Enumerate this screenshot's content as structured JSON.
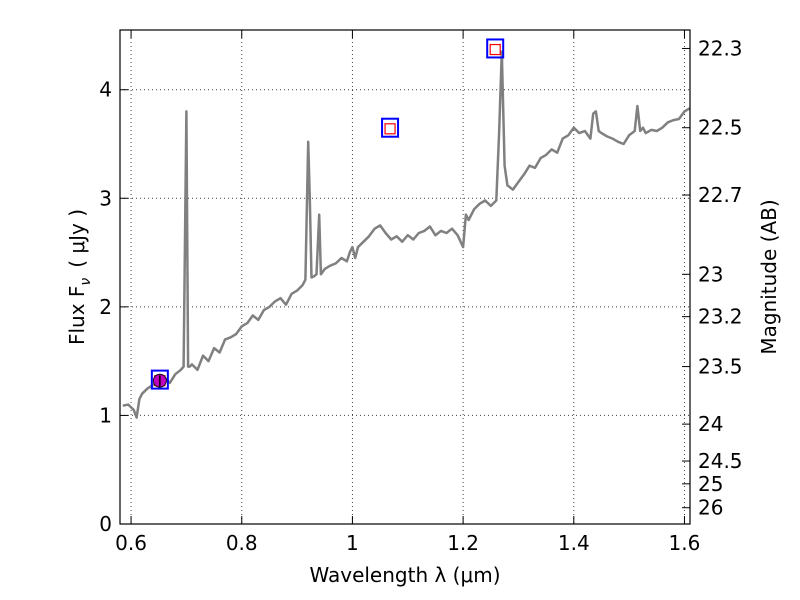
{
  "chart_data": {
    "type": "line",
    "xlabel": "Wavelength  λ (μm)",
    "ylabel": "Flux  F",
    "ylabel_sub": "ν",
    "ylabel_unit": "( μJy )",
    "ylabel_right": "Magnitude (AB)",
    "xlim": [
      0.58,
      1.61
    ],
    "ylim": [
      0,
      4.55
    ],
    "grid": true,
    "x_ticks": [
      0.6,
      0.8,
      1.0,
      1.2,
      1.4,
      1.6
    ],
    "x_tick_labels": [
      "0.6",
      "0.8",
      "1",
      "1.2",
      "1.4",
      "1.6"
    ],
    "y_ticks": [
      0,
      1,
      2,
      3,
      4
    ],
    "y_tick_labels": [
      "0",
      "1",
      "2",
      "3",
      "4"
    ],
    "right_ticks": [
      {
        "label": "22.3",
        "flux": 4.38
      },
      {
        "label": "22.5",
        "flux": 3.65
      },
      {
        "label": "22.7",
        "flux": 3.03
      },
      {
        "label": "23",
        "flux": 2.3
      },
      {
        "label": "23.2",
        "flux": 1.91
      },
      {
        "label": "23.5",
        "flux": 1.45
      },
      {
        "label": "24",
        "flux": 0.92
      },
      {
        "label": "24.5",
        "flux": 0.58
      },
      {
        "label": "25",
        "flux": 0.37
      },
      {
        "label": "26",
        "flux": 0.15
      }
    ],
    "series": [
      {
        "color": "#808080",
        "x": [
          0.585,
          0.595,
          0.605,
          0.61,
          0.615,
          0.62,
          0.63,
          0.64,
          0.65,
          0.66,
          0.67,
          0.68,
          0.69,
          0.695,
          0.7,
          0.703,
          0.706,
          0.71,
          0.72,
          0.73,
          0.74,
          0.75,
          0.76,
          0.77,
          0.78,
          0.79,
          0.8,
          0.81,
          0.82,
          0.83,
          0.84,
          0.85,
          0.86,
          0.87,
          0.88,
          0.89,
          0.9,
          0.91,
          0.915,
          0.92,
          0.923,
          0.926,
          0.93,
          0.935,
          0.94,
          0.943,
          0.946,
          0.95,
          0.96,
          0.97,
          0.98,
          0.99,
          0.995,
          1.0,
          1.005,
          1.01,
          1.02,
          1.03,
          1.04,
          1.05,
          1.06,
          1.07,
          1.08,
          1.09,
          1.1,
          1.11,
          1.12,
          1.13,
          1.14,
          1.15,
          1.16,
          1.17,
          1.18,
          1.19,
          1.2,
          1.205,
          1.21,
          1.22,
          1.23,
          1.24,
          1.25,
          1.26,
          1.265,
          1.27,
          1.275,
          1.28,
          1.29,
          1.3,
          1.31,
          1.32,
          1.33,
          1.34,
          1.35,
          1.36,
          1.37,
          1.38,
          1.39,
          1.4,
          1.41,
          1.42,
          1.43,
          1.435,
          1.44,
          1.445,
          1.45,
          1.46,
          1.47,
          1.48,
          1.49,
          1.5,
          1.51,
          1.515,
          1.52,
          1.525,
          1.53,
          1.54,
          1.55,
          1.56,
          1.57,
          1.58,
          1.59,
          1.6,
          1.61
        ],
        "y": [
          1.09,
          1.1,
          1.05,
          0.98,
          1.15,
          1.2,
          1.25,
          1.28,
          1.33,
          1.35,
          1.3,
          1.38,
          1.42,
          1.45,
          3.8,
          1.45,
          1.45,
          1.47,
          1.42,
          1.55,
          1.5,
          1.62,
          1.58,
          1.7,
          1.72,
          1.75,
          1.82,
          1.85,
          1.92,
          1.88,
          1.97,
          2.0,
          2.05,
          2.08,
          2.02,
          2.12,
          2.15,
          2.2,
          2.25,
          3.52,
          3.0,
          2.27,
          2.28,
          2.3,
          2.85,
          2.3,
          2.32,
          2.35,
          2.38,
          2.4,
          2.45,
          2.42,
          2.5,
          2.55,
          2.45,
          2.55,
          2.6,
          2.65,
          2.72,
          2.75,
          2.68,
          2.62,
          2.65,
          2.6,
          2.66,
          2.62,
          2.68,
          2.7,
          2.74,
          2.66,
          2.7,
          2.68,
          2.72,
          2.66,
          2.55,
          2.85,
          2.8,
          2.9,
          2.95,
          2.98,
          2.93,
          2.98,
          3.6,
          4.35,
          3.3,
          3.12,
          3.08,
          3.15,
          3.22,
          3.3,
          3.28,
          3.37,
          3.4,
          3.45,
          3.42,
          3.55,
          3.58,
          3.65,
          3.6,
          3.62,
          3.55,
          3.78,
          3.8,
          3.62,
          3.6,
          3.57,
          3.55,
          3.52,
          3.5,
          3.58,
          3.62,
          3.85,
          3.62,
          3.65,
          3.6,
          3.63,
          3.62,
          3.65,
          3.7,
          3.72,
          3.73,
          3.8,
          3.83
        ]
      }
    ],
    "photometry_boxes": [
      {
        "x": 0.652,
        "y": 1.33
      },
      {
        "x": 1.068,
        "y": 3.65
      },
      {
        "x": 1.258,
        "y": 4.38
      }
    ],
    "model_points": [
      {
        "x": 0.652,
        "y": 1.32
      },
      {
        "x": 1.068,
        "y": 3.64
      },
      {
        "x": 1.258,
        "y": 4.37
      }
    ],
    "measured_point": {
      "x": 0.652,
      "y": 1.32,
      "err_low": 1.26,
      "err_high": 1.37
    },
    "colors": {
      "spectrum": "#808080",
      "box": "#0000ff",
      "model": "#ff0000",
      "measured": "#bf00bf"
    }
  }
}
